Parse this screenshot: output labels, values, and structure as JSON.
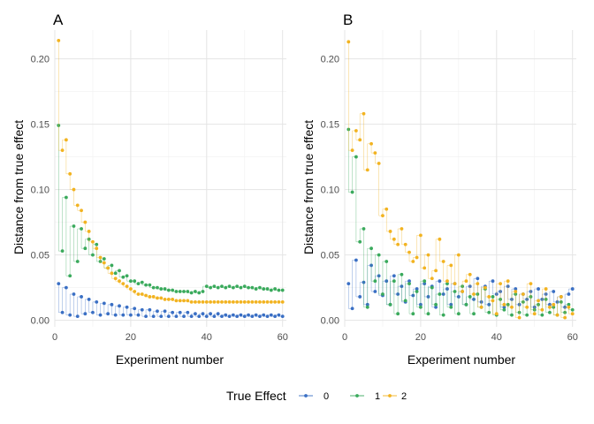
{
  "legend": {
    "title": "True Effect",
    "entries": [
      {
        "label": "0",
        "color": "#3a6fc4"
      },
      {
        "label": "1",
        "color": "#3aaa5c"
      },
      {
        "label": "2",
        "color": "#f2b320"
      }
    ]
  },
  "chart_data": [
    {
      "type": "scatter",
      "panel_label": "A",
      "xlabel": "Experiment number",
      "ylabel": "Distance from true effect",
      "xlim": [
        0,
        61
      ],
      "ylim": [
        -0.005,
        0.222
      ],
      "xticks": [
        0,
        20,
        40,
        60
      ],
      "yticks": [
        0.0,
        0.05,
        0.1,
        0.15,
        0.2
      ],
      "ytick_labels": [
        "0.00",
        "0.05",
        "0.10",
        "0.15",
        "0.20"
      ],
      "grid": true,
      "legend_position": "bottom",
      "x": [
        1,
        2,
        3,
        4,
        5,
        6,
        7,
        8,
        9,
        10,
        11,
        12,
        13,
        14,
        15,
        16,
        17,
        18,
        19,
        20,
        21,
        22,
        23,
        24,
        25,
        26,
        27,
        28,
        29,
        30,
        31,
        32,
        33,
        34,
        35,
        36,
        37,
        38,
        39,
        40,
        41,
        42,
        43,
        44,
        45,
        46,
        47,
        48,
        49,
        50,
        51,
        52,
        53,
        54,
        55,
        56,
        57,
        58,
        59,
        60
      ],
      "series": [
        {
          "name": "0",
          "color": "#3a6fc4",
          "values": [
            0.028,
            0.006,
            0.025,
            0.004,
            0.02,
            0.003,
            0.018,
            0.005,
            0.016,
            0.006,
            0.014,
            0.004,
            0.013,
            0.005,
            0.012,
            0.004,
            0.011,
            0.004,
            0.01,
            0.004,
            0.009,
            0.004,
            0.008,
            0.003,
            0.008,
            0.003,
            0.007,
            0.003,
            0.007,
            0.003,
            0.006,
            0.003,
            0.006,
            0.003,
            0.006,
            0.003,
            0.005,
            0.003,
            0.005,
            0.003,
            0.005,
            0.003,
            0.005,
            0.003,
            0.004,
            0.003,
            0.004,
            0.003,
            0.004,
            0.003,
            0.004,
            0.003,
            0.004,
            0.003,
            0.004,
            0.003,
            0.004,
            0.003,
            0.004,
            0.003
          ]
        },
        {
          "name": "1",
          "color": "#3aaa5c",
          "values": [
            0.149,
            0.053,
            0.094,
            0.034,
            0.072,
            0.045,
            0.07,
            0.055,
            0.062,
            0.05,
            0.058,
            0.045,
            0.047,
            0.04,
            0.042,
            0.036,
            0.038,
            0.033,
            0.034,
            0.03,
            0.03,
            0.028,
            0.029,
            0.027,
            0.027,
            0.025,
            0.025,
            0.024,
            0.024,
            0.023,
            0.023,
            0.022,
            0.022,
            0.022,
            0.022,
            0.021,
            0.022,
            0.021,
            0.022,
            0.026,
            0.025,
            0.026,
            0.025,
            0.026,
            0.025,
            0.026,
            0.025,
            0.026,
            0.025,
            0.026,
            0.025,
            0.025,
            0.024,
            0.025,
            0.024,
            0.024,
            0.023,
            0.024,
            0.023,
            0.023
          ]
        },
        {
          "name": "2",
          "color": "#f2b320",
          "values": [
            0.214,
            0.13,
            0.138,
            0.112,
            0.1,
            0.088,
            0.084,
            0.075,
            0.068,
            0.06,
            0.055,
            0.048,
            0.044,
            0.04,
            0.036,
            0.032,
            0.03,
            0.028,
            0.026,
            0.024,
            0.022,
            0.02,
            0.02,
            0.019,
            0.018,
            0.018,
            0.017,
            0.017,
            0.016,
            0.016,
            0.016,
            0.015,
            0.015,
            0.015,
            0.015,
            0.014,
            0.014,
            0.014,
            0.014,
            0.014,
            0.014,
            0.014,
            0.014,
            0.014,
            0.014,
            0.014,
            0.014,
            0.014,
            0.014,
            0.014,
            0.014,
            0.014,
            0.014,
            0.014,
            0.014,
            0.014,
            0.014,
            0.014,
            0.014,
            0.014
          ]
        }
      ]
    },
    {
      "type": "scatter",
      "panel_label": "B",
      "xlabel": "Experiment number",
      "ylabel": "Distance from true effect",
      "xlim": [
        0,
        61
      ],
      "ylim": [
        -0.005,
        0.222
      ],
      "xticks": [
        0,
        20,
        40,
        60
      ],
      "yticks": [
        0.0,
        0.05,
        0.1,
        0.15,
        0.2
      ],
      "ytick_labels": [
        "0.00",
        "0.05",
        "0.10",
        "0.15",
        "0.20"
      ],
      "grid": true,
      "legend_position": "bottom",
      "x": [
        1,
        2,
        3,
        4,
        5,
        6,
        7,
        8,
        9,
        10,
        11,
        12,
        13,
        14,
        15,
        16,
        17,
        18,
        19,
        20,
        21,
        22,
        23,
        24,
        25,
        26,
        27,
        28,
        29,
        30,
        31,
        32,
        33,
        34,
        35,
        36,
        37,
        38,
        39,
        40,
        41,
        42,
        43,
        44,
        45,
        46,
        47,
        48,
        49,
        50,
        51,
        52,
        53,
        54,
        55,
        56,
        57,
        58,
        59,
        60
      ],
      "series": [
        {
          "name": "0",
          "color": "#3a6fc4",
          "values": [
            0.028,
            0.009,
            0.046,
            0.018,
            0.029,
            0.012,
            0.042,
            0.022,
            0.034,
            0.019,
            0.03,
            0.012,
            0.034,
            0.02,
            0.026,
            0.014,
            0.03,
            0.019,
            0.024,
            0.012,
            0.028,
            0.018,
            0.026,
            0.01,
            0.03,
            0.02,
            0.024,
            0.012,
            0.028,
            0.018,
            0.022,
            0.012,
            0.026,
            0.016,
            0.032,
            0.014,
            0.026,
            0.012,
            0.03,
            0.02,
            0.022,
            0.01,
            0.026,
            0.016,
            0.024,
            0.012,
            0.02,
            0.016,
            0.022,
            0.01,
            0.024,
            0.016,
            0.02,
            0.012,
            0.022,
            0.014,
            0.018,
            0.01,
            0.02,
            0.024
          ]
        },
        {
          "name": "1",
          "color": "#3aaa5c",
          "values": [
            0.146,
            0.098,
            0.125,
            0.06,
            0.07,
            0.01,
            0.055,
            0.03,
            0.05,
            0.02,
            0.045,
            0.012,
            0.03,
            0.005,
            0.035,
            0.015,
            0.028,
            0.005,
            0.022,
            0.01,
            0.03,
            0.005,
            0.025,
            0.012,
            0.02,
            0.004,
            0.028,
            0.01,
            0.022,
            0.005,
            0.026,
            0.012,
            0.018,
            0.005,
            0.02,
            0.01,
            0.024,
            0.006,
            0.018,
            0.004,
            0.016,
            0.008,
            0.012,
            0.004,
            0.02,
            0.006,
            0.014,
            0.004,
            0.018,
            0.008,
            0.012,
            0.004,
            0.016,
            0.006,
            0.01,
            0.004,
            0.014,
            0.006,
            0.012,
            0.008
          ]
        },
        {
          "name": "2",
          "color": "#f2b320",
          "values": [
            0.213,
            0.13,
            0.145,
            0.138,
            0.158,
            0.115,
            0.135,
            0.128,
            0.12,
            0.08,
            0.085,
            0.068,
            0.062,
            0.058,
            0.07,
            0.058,
            0.052,
            0.045,
            0.048,
            0.065,
            0.04,
            0.05,
            0.032,
            0.038,
            0.062,
            0.045,
            0.03,
            0.042,
            0.028,
            0.05,
            0.022,
            0.03,
            0.035,
            0.02,
            0.028,
            0.01,
            0.025,
            0.018,
            0.015,
            0.005,
            0.028,
            0.012,
            0.03,
            0.01,
            0.022,
            0.002,
            0.02,
            0.01,
            0.028,
            0.005,
            0.015,
            0.008,
            0.024,
            0.01,
            0.012,
            0.004,
            0.018,
            0.002,
            0.01,
            0.005
          ]
        }
      ]
    }
  ]
}
